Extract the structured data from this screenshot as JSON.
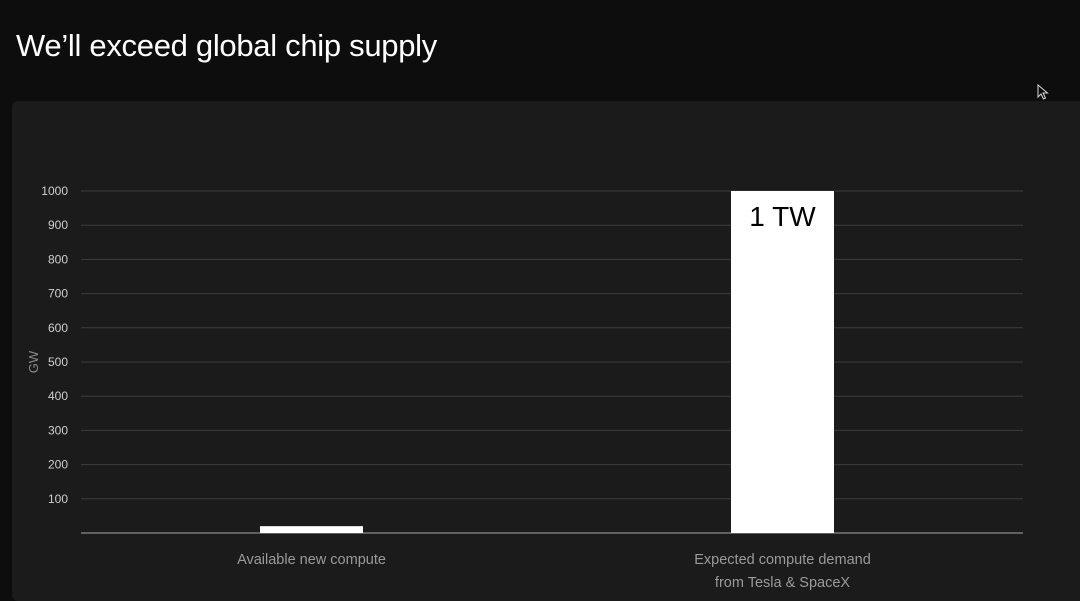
{
  "slide": {
    "title": "We’ll exceed global chip supply"
  },
  "icons": {
    "cursor": "mouse-pointer-icon"
  },
  "colors": {
    "background": "#0d0d0d",
    "panel": "#1b1b1b",
    "bar": "#ffffff",
    "grid": "#3d3d3d",
    "axis": "#8a8a8a"
  },
  "chart_data": {
    "type": "bar",
    "title": "",
    "xlabel": "",
    "ylabel": "GW",
    "ylim": [
      0,
      1000
    ],
    "yticks": [
      100,
      200,
      300,
      400,
      500,
      600,
      700,
      800,
      900,
      1000
    ],
    "grid": true,
    "categories": [
      [
        "Available new compute"
      ],
      [
        "Expected compute demand",
        "from Tesla & SpaceX"
      ]
    ],
    "values": [
      20,
      1000
    ],
    "data_labels": [
      "",
      "1 TW"
    ]
  }
}
